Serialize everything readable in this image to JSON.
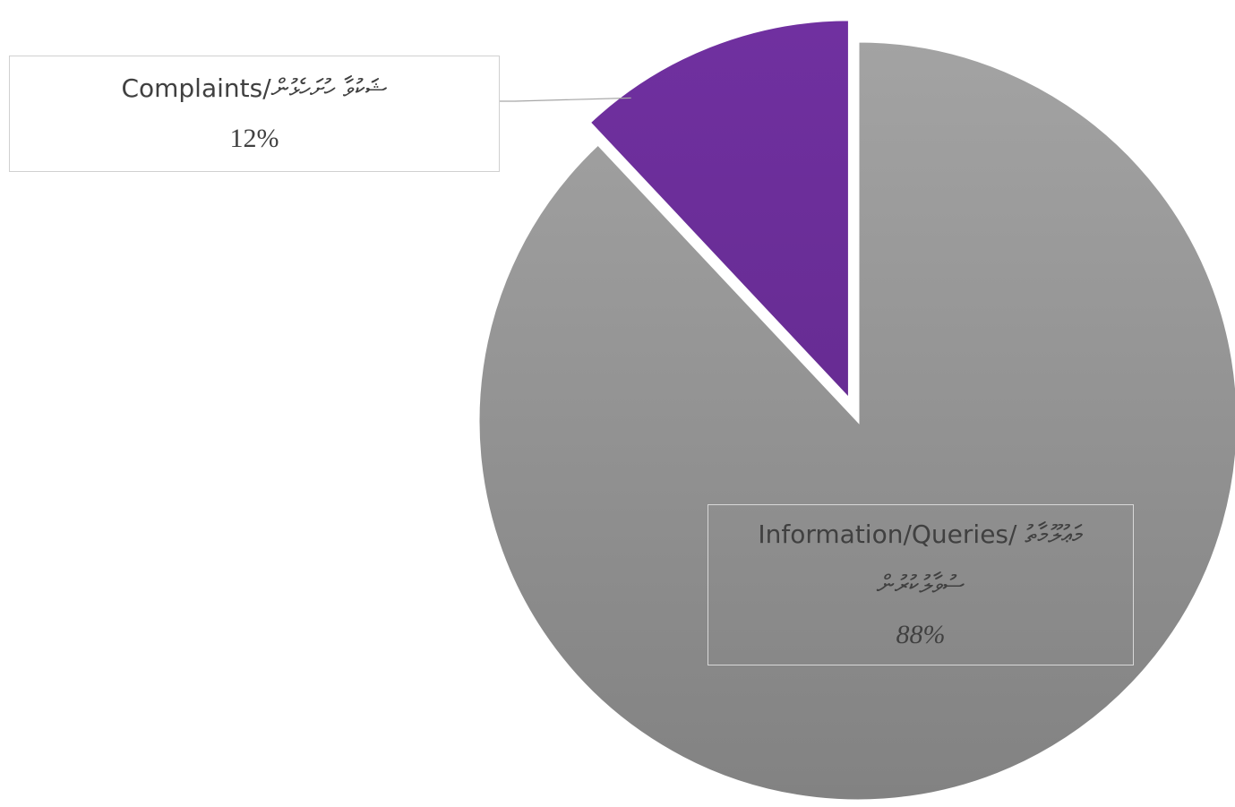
{
  "chart_data": {
    "type": "pie",
    "categories": [
      "Complaints/ޝަކުވާ ހުށަހެޅުން",
      "Information/Queries/ މަޢުލޫމާތު ސުވާލުކުރުން"
    ],
    "values": [
      12,
      88
    ],
    "value_labels": [
      "12%",
      "88%"
    ],
    "colors": [
      "#7030a0",
      "#a3a3a3"
    ]
  }
}
